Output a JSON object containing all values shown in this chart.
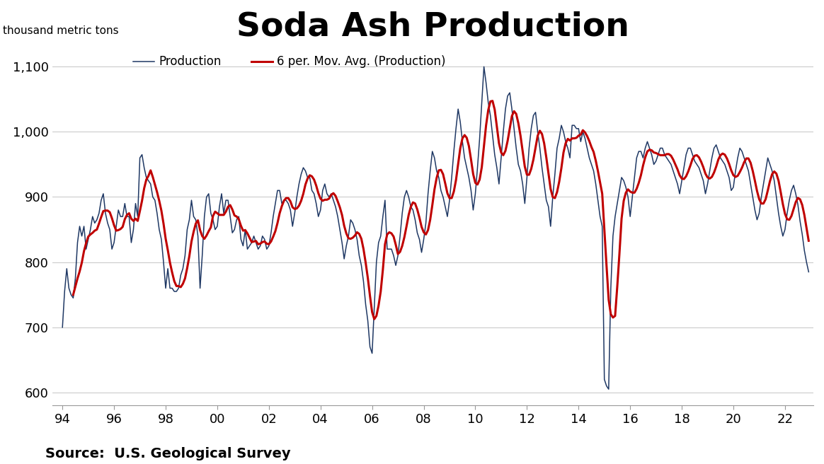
{
  "title": "Soda Ash Production",
  "ylabel": "thousand metric tons",
  "source": "Source:  U.S. Geological Survey",
  "legend_production": "Production",
  "legend_mavg": "6 per. Mov. Avg. (Production)",
  "line_color_production": "#1F3864",
  "line_color_mavg": "#C00000",
  "background_color": "#FFFFFF",
  "grid_color": "#BBBBBB",
  "ylim": [
    580,
    1130
  ],
  "title_fontsize": 34,
  "label_fontsize": 11,
  "tick_fontsize": 13,
  "source_fontsize": 14,
  "legend_fontsize": 12,
  "production": [
    700,
    755,
    790,
    760,
    750,
    745,
    775,
    830,
    855,
    840,
    855,
    820,
    835,
    850,
    870,
    860,
    865,
    875,
    895,
    905,
    875,
    860,
    850,
    820,
    830,
    855,
    880,
    870,
    870,
    890,
    870,
    870,
    830,
    850,
    890,
    870,
    960,
    965,
    945,
    930,
    925,
    920,
    900,
    895,
    875,
    850,
    835,
    800,
    760,
    790,
    760,
    760,
    755,
    755,
    760,
    780,
    790,
    810,
    850,
    865,
    895,
    870,
    865,
    840,
    760,
    810,
    870,
    900,
    905,
    875,
    865,
    850,
    855,
    885,
    905,
    875,
    895,
    895,
    870,
    845,
    850,
    865,
    870,
    835,
    825,
    850,
    820,
    825,
    830,
    840,
    830,
    820,
    825,
    840,
    835,
    820,
    825,
    845,
    870,
    890,
    910,
    910,
    890,
    895,
    895,
    890,
    880,
    855,
    875,
    900,
    920,
    935,
    945,
    940,
    930,
    930,
    910,
    905,
    890,
    870,
    880,
    910,
    920,
    905,
    900,
    905,
    895,
    885,
    870,
    850,
    830,
    805,
    825,
    840,
    865,
    860,
    850,
    835,
    810,
    795,
    770,
    735,
    710,
    670,
    660,
    730,
    800,
    830,
    840,
    870,
    895,
    820,
    820,
    820,
    810,
    795,
    810,
    840,
    875,
    900,
    910,
    900,
    885,
    880,
    865,
    845,
    835,
    815,
    835,
    860,
    905,
    940,
    970,
    960,
    940,
    930,
    910,
    900,
    885,
    870,
    895,
    930,
    970,
    1005,
    1035,
    1015,
    985,
    960,
    945,
    930,
    910,
    880,
    905,
    945,
    990,
    1045,
    1100,
    1075,
    1045,
    1025,
    995,
    965,
    945,
    920,
    960,
    1000,
    1035,
    1055,
    1060,
    1035,
    1005,
    975,
    950,
    940,
    920,
    890,
    930,
    975,
    1005,
    1025,
    1030,
    1000,
    975,
    945,
    920,
    895,
    885,
    855,
    900,
    935,
    975,
    990,
    1010,
    1000,
    985,
    975,
    960,
    1010,
    1010,
    1005,
    1005,
    985,
    1000,
    990,
    975,
    960,
    950,
    940,
    920,
    895,
    870,
    855,
    620,
    610,
    605,
    760,
    840,
    870,
    890,
    910,
    930,
    925,
    915,
    900,
    870,
    900,
    930,
    960,
    970,
    970,
    960,
    975,
    985,
    975,
    965,
    950,
    955,
    965,
    975,
    975,
    965,
    960,
    955,
    950,
    940,
    930,
    920,
    905,
    925,
    945,
    965,
    975,
    975,
    965,
    955,
    950,
    945,
    935,
    925,
    905,
    920,
    940,
    960,
    975,
    980,
    970,
    960,
    955,
    950,
    940,
    930,
    910,
    915,
    940,
    960,
    975,
    970,
    960,
    950,
    940,
    920,
    900,
    880,
    865,
    875,
    900,
    920,
    940,
    960,
    950,
    940,
    925,
    900,
    875,
    855,
    840,
    850,
    875,
    895,
    910,
    918,
    905,
    888,
    863,
    843,
    818,
    800,
    785
  ],
  "start_year": 1994,
  "start_month": 1,
  "mavg_period": 6
}
